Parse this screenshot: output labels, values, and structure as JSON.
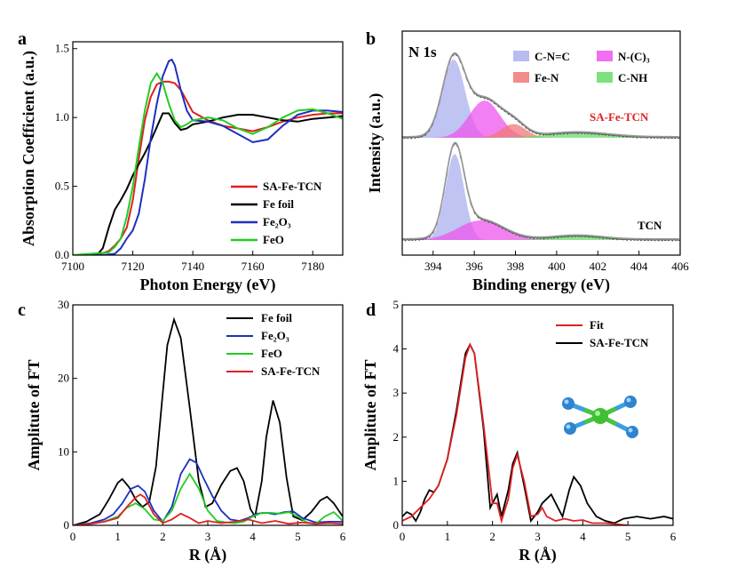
{
  "chart_data": [
    {
      "panel": "a",
      "type": "line",
      "xlabel": "Photon Energy (eV)",
      "ylabel": "Absorption Coefficient (a.u.)",
      "xlim": [
        7100,
        7190
      ],
      "ylim": [
        0,
        1.55
      ],
      "xticks": [
        7100,
        7120,
        7140,
        7160,
        7180
      ],
      "yticks": [
        0.0,
        0.5,
        1.0,
        1.5
      ],
      "ytick_labels": [
        "0.0",
        "0.5",
        "1.0",
        "1.5"
      ],
      "legend_position": "bottom-right",
      "series": [
        {
          "name": "SA-Fe-TCN",
          "color": "#e02020",
          "x": [
            7100,
            7108,
            7112,
            7114,
            7116,
            7118,
            7120,
            7122,
            7124,
            7126,
            7128,
            7130,
            7132,
            7134,
            7136,
            7138,
            7140,
            7145,
            7150,
            7155,
            7160,
            7165,
            7170,
            7175,
            7180,
            7185,
            7190
          ],
          "y": [
            0.0,
            0.0,
            0.03,
            0.07,
            0.12,
            0.2,
            0.4,
            0.7,
            0.98,
            1.15,
            1.24,
            1.26,
            1.26,
            1.25,
            1.2,
            1.12,
            1.04,
            0.98,
            0.94,
            0.92,
            0.9,
            0.93,
            0.97,
            1.0,
            1.02,
            1.03,
            1.03
          ]
        },
        {
          "name": "Fe foil",
          "color": "#000000",
          "x": [
            7100,
            7108,
            7110,
            7112,
            7114,
            7116,
            7118,
            7120,
            7122,
            7124,
            7126,
            7128,
            7130,
            7132,
            7134,
            7136,
            7138,
            7140,
            7145,
            7150,
            7155,
            7160,
            7165,
            7170,
            7175,
            7180,
            7185,
            7190
          ],
          "y": [
            0.0,
            0.0,
            0.05,
            0.2,
            0.33,
            0.4,
            0.48,
            0.58,
            0.66,
            0.74,
            0.83,
            0.93,
            1.03,
            1.03,
            0.96,
            0.91,
            0.92,
            0.95,
            0.97,
            1.0,
            1.02,
            1.02,
            1.0,
            0.98,
            0.97,
            0.99,
            1.0,
            1.01
          ]
        },
        {
          "name": "Fe₂O₃",
          "color": "#1f2fbf",
          "x": [
            7100,
            7110,
            7114,
            7116,
            7118,
            7120,
            7122,
            7124,
            7126,
            7128,
            7130,
            7132,
            7133,
            7134,
            7136,
            7138,
            7140,
            7145,
            7150,
            7155,
            7160,
            7165,
            7170,
            7175,
            7180,
            7185,
            7190
          ],
          "y": [
            0.0,
            0.0,
            0.01,
            0.05,
            0.12,
            0.18,
            0.3,
            0.55,
            0.85,
            1.1,
            1.3,
            1.41,
            1.42,
            1.38,
            1.2,
            1.05,
            0.98,
            0.97,
            0.94,
            0.88,
            0.82,
            0.84,
            0.94,
            1.02,
            1.05,
            1.05,
            1.04
          ]
        },
        {
          "name": "FeO",
          "color": "#22cc22",
          "x": [
            7100,
            7112,
            7114,
            7116,
            7118,
            7120,
            7122,
            7124,
            7126,
            7128,
            7130,
            7132,
            7134,
            7136,
            7138,
            7140,
            7145,
            7150,
            7155,
            7160,
            7165,
            7170,
            7175,
            7180,
            7185,
            7190
          ],
          "y": [
            0.0,
            0.02,
            0.06,
            0.12,
            0.28,
            0.5,
            0.78,
            1.05,
            1.25,
            1.32,
            1.25,
            1.1,
            0.98,
            0.93,
            0.95,
            0.98,
            1.0,
            0.98,
            0.92,
            0.88,
            0.93,
            1.0,
            1.05,
            1.06,
            1.03,
            0.99
          ]
        }
      ]
    },
    {
      "panel": "b",
      "type": "area",
      "xlabel": "Binding energy (eV)",
      "ylabel": "Intensity (a.u.)",
      "xlim": [
        392.5,
        406
      ],
      "xticks": [
        394,
        396,
        398,
        400,
        402,
        404,
        406
      ],
      "title": "N 1s",
      "legend": [
        {
          "name": "C-N=C",
          "color": "#aab0ee"
        },
        {
          "name": "N-(C)₃",
          "color": "#ee55ee"
        },
        {
          "name": "Fe-N",
          "color": "#f07878"
        },
        {
          "name": "C-NH",
          "color": "#66dd66"
        }
      ],
      "curve_labels": [
        {
          "text": "SA-Fe-TCN",
          "color": "#e02020"
        },
        {
          "text": "TCN",
          "color": "#000000"
        }
      ],
      "stacks": [
        {
          "name": "SA-Fe-TCN",
          "peaks": [
            {
              "component": "C-N=C",
              "center": 395.0,
              "width": 0.55,
              "height": 80
            },
            {
              "component": "N-(C)₃",
              "center": 396.5,
              "width": 0.75,
              "height": 38
            },
            {
              "component": "Fe-N",
              "center": 397.9,
              "width": 0.6,
              "height": 14
            },
            {
              "component": "C-NH",
              "center": 401.0,
              "width": 1.5,
              "height": 5
            }
          ]
        },
        {
          "name": "TCN",
          "peaks": [
            {
              "component": "C-N=C",
              "center": 395.05,
              "width": 0.45,
              "height": 88
            },
            {
              "component": "N-(C)₃",
              "center": 396.3,
              "width": 1.1,
              "height": 20
            },
            {
              "component": "C-NH",
              "center": 401.0,
              "width": 1.2,
              "height": 4
            }
          ]
        }
      ]
    },
    {
      "panel": "c",
      "type": "line",
      "xlabel": "R (Å)",
      "ylabel": "Amplitute of FT",
      "xlim": [
        0,
        6
      ],
      "ylim": [
        0,
        30
      ],
      "xticks": [
        0,
        1,
        2,
        3,
        4,
        5,
        6
      ],
      "yticks": [
        0,
        10,
        20,
        30
      ],
      "legend_position": "top-right",
      "series": [
        {
          "name": "Fe foil",
          "color": "#000000",
          "x": [
            0,
            0.3,
            0.6,
            0.8,
            1.0,
            1.1,
            1.25,
            1.4,
            1.55,
            1.7,
            1.85,
            2.0,
            2.1,
            2.25,
            2.4,
            2.6,
            2.8,
            2.95,
            3.1,
            3.3,
            3.5,
            3.65,
            3.8,
            3.95,
            4.05,
            4.2,
            4.3,
            4.45,
            4.6,
            4.75,
            4.9,
            5.1,
            5.3,
            5.5,
            5.65,
            5.8,
            6.0
          ],
          "y": [
            0,
            0.5,
            1.5,
            3.5,
            5.8,
            6.3,
            5.2,
            3.5,
            2.5,
            3.2,
            8.0,
            18.0,
            24.5,
            28.0,
            25.5,
            16.0,
            6.0,
            2.5,
            3.0,
            5.5,
            7.4,
            7.8,
            6.0,
            2.2,
            1.2,
            6.0,
            12.0,
            17.0,
            14.0,
            6.5,
            1.2,
            0.7,
            1.8,
            3.4,
            3.9,
            3.0,
            1.2
          ]
        },
        {
          "name": "Fe₂O₃",
          "color": "#1f2fbf",
          "x": [
            0,
            0.4,
            0.7,
            0.9,
            1.1,
            1.3,
            1.45,
            1.6,
            1.8,
            2.0,
            2.2,
            2.4,
            2.6,
            2.75,
            2.9,
            3.1,
            3.3,
            3.5,
            3.7,
            3.9,
            4.1,
            4.3,
            4.5,
            4.7,
            4.9,
            5.1,
            5.4,
            5.7,
            6.0
          ],
          "y": [
            0,
            0.3,
            0.8,
            1.5,
            3.0,
            5.0,
            5.4,
            4.6,
            2.0,
            0.5,
            2.5,
            7.0,
            9.0,
            8.5,
            6.5,
            4.0,
            2.0,
            0.8,
            0.6,
            1.0,
            1.6,
            1.7,
            1.5,
            1.8,
            1.9,
            1.0,
            0.4,
            0.5,
            0.5
          ]
        },
        {
          "name": "FeO",
          "color": "#22cc22",
          "x": [
            0,
            0.4,
            0.7,
            1.0,
            1.2,
            1.4,
            1.6,
            1.8,
            2.0,
            2.2,
            2.4,
            2.6,
            2.8,
            3.0,
            3.2,
            3.4,
            3.6,
            3.8,
            4.0,
            4.2,
            4.4,
            4.6,
            4.8,
            5.0,
            5.2,
            5.4,
            5.6,
            5.8,
            6.0
          ],
          "y": [
            0,
            0.2,
            0.5,
            1.2,
            2.4,
            3.0,
            2.2,
            0.8,
            0.6,
            2.0,
            5.0,
            7.0,
            5.0,
            2.0,
            0.6,
            0.4,
            0.3,
            0.5,
            1.2,
            1.7,
            1.7,
            1.6,
            1.8,
            1.2,
            0.4,
            0.2,
            1.2,
            1.8,
            0.6
          ]
        },
        {
          "name": "SA-Fe-TCN",
          "color": "#e02020",
          "x": [
            0,
            0.4,
            0.7,
            1.0,
            1.2,
            1.4,
            1.5,
            1.6,
            1.8,
            2.0,
            2.2,
            2.4,
            2.6,
            2.8,
            3.0,
            3.3,
            3.6,
            3.9,
            4.2,
            4.5,
            4.8,
            5.1,
            5.4,
            5.7,
            6.0
          ],
          "y": [
            0,
            0.2,
            0.5,
            1.0,
            2.5,
            3.8,
            4.2,
            3.8,
            1.5,
            0.3,
            0.8,
            1.6,
            1.0,
            0.3,
            0.6,
            0.3,
            0.5,
            0.8,
            0.3,
            0.6,
            0.2,
            0.4,
            0.2,
            0.3,
            0.2
          ]
        }
      ]
    },
    {
      "panel": "d",
      "type": "line",
      "xlabel": "R (Å)",
      "ylabel": "Amplitute of FT",
      "xlim": [
        0,
        6
      ],
      "ylim": [
        0,
        5
      ],
      "xticks": [
        0,
        1,
        2,
        3,
        4,
        5,
        6
      ],
      "yticks": [
        0,
        1,
        2,
        3,
        4,
        5
      ],
      "legend_position": "top-right",
      "series": [
        {
          "name": "Fit",
          "color": "#e02020",
          "x": [
            0,
            0.2,
            0.4,
            0.6,
            0.8,
            1.0,
            1.2,
            1.4,
            1.5,
            1.6,
            1.8,
            2.0,
            2.1,
            2.2,
            2.35,
            2.45,
            2.55,
            2.7,
            2.85,
            3.0,
            3.1,
            3.2,
            3.4,
            3.6,
            3.8,
            4.0,
            4.2,
            4.5,
            4.8,
            5.0
          ],
          "y": [
            0.1,
            0.2,
            0.4,
            0.6,
            0.9,
            1.5,
            2.5,
            3.8,
            4.1,
            3.9,
            2.3,
            0.5,
            0.5,
            0.1,
            0.6,
            1.3,
            1.6,
            1.0,
            0.2,
            0.25,
            0.4,
            0.2,
            0.1,
            0.15,
            0.1,
            0.12,
            0.05,
            0.05,
            0.02,
            0.0
          ]
        },
        {
          "name": "SA-Fe-TCN",
          "color": "#000000",
          "x": [
            0,
            0.1,
            0.2,
            0.3,
            0.4,
            0.5,
            0.6,
            0.7,
            0.8,
            1.0,
            1.2,
            1.4,
            1.5,
            1.6,
            1.8,
            1.95,
            2.05,
            2.1,
            2.2,
            2.35,
            2.45,
            2.55,
            2.7,
            2.85,
            3.0,
            3.1,
            3.3,
            3.45,
            3.55,
            3.7,
            3.8,
            3.95,
            4.1,
            4.3,
            4.5,
            4.7,
            4.9,
            5.2,
            5.5,
            5.8,
            6.0
          ],
          "y": [
            0.2,
            0.3,
            0.25,
            0.1,
            0.3,
            0.6,
            0.8,
            0.75,
            0.9,
            1.5,
            2.6,
            3.9,
            4.1,
            3.9,
            2.2,
            0.4,
            0.6,
            0.7,
            0.2,
            0.8,
            1.4,
            1.65,
            0.9,
            0.1,
            0.3,
            0.5,
            0.7,
            0.4,
            0.2,
            0.8,
            1.1,
            0.9,
            0.5,
            0.2,
            0.1,
            0.05,
            0.15,
            0.2,
            0.15,
            0.2,
            0.15
          ]
        }
      ]
    }
  ]
}
